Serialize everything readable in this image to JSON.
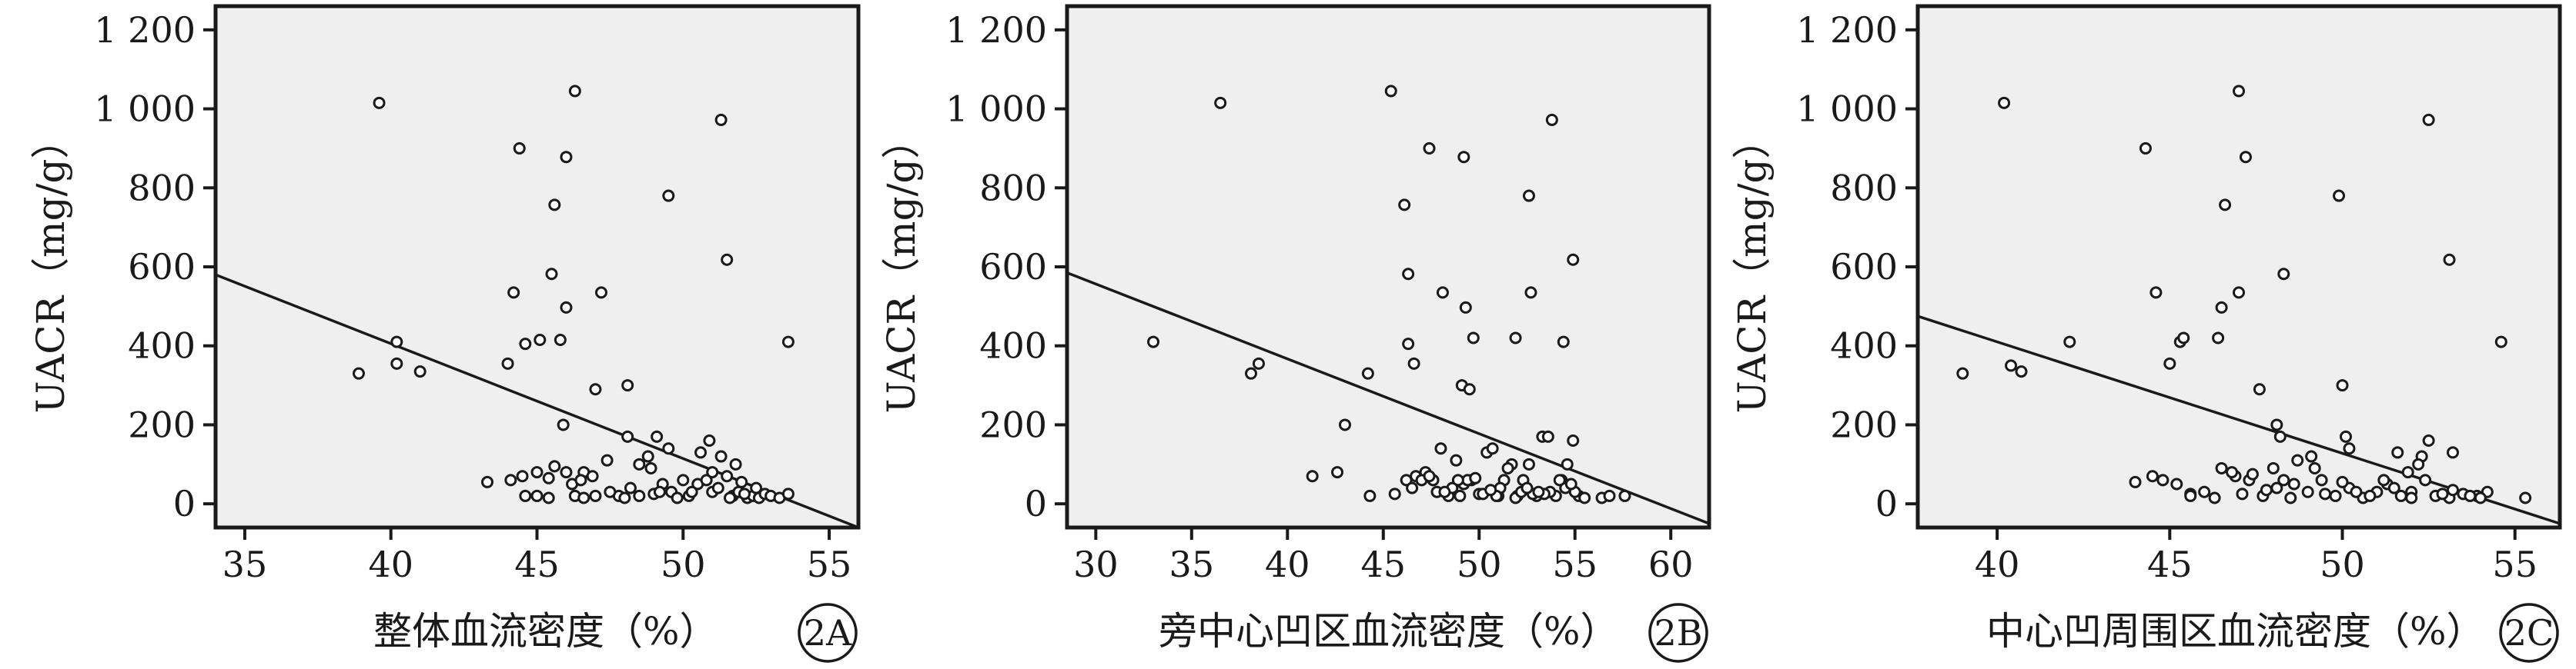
{
  "chart_data": [
    {
      "type": "scatter",
      "panel_label": "2A",
      "xlabel": "整体血流密度（%）",
      "ylabel": "UACR（mg/g）",
      "xlim": [
        34,
        56
      ],
      "ylim": [
        -60,
        1260
      ],
      "x_ticks": [
        35,
        40,
        45,
        50,
        55
      ],
      "y_ticks": [
        0,
        200,
        400,
        600,
        800,
        1000,
        1200
      ],
      "y_tick_labels": [
        "0",
        "200",
        "400",
        "600",
        "800",
        "1 000",
        "1 200"
      ],
      "fit_line": {
        "x": [
          34,
          56
        ],
        "y": [
          580,
          -60
        ]
      },
      "points": [
        [
          39.6,
          1015
        ],
        [
          46.3,
          1045
        ],
        [
          51.3,
          972
        ],
        [
          44.4,
          900
        ],
        [
          46.0,
          878
        ],
        [
          49.5,
          780
        ],
        [
          45.6,
          757
        ],
        [
          51.5,
          618
        ],
        [
          45.5,
          582
        ],
        [
          44.2,
          535
        ],
        [
          47.2,
          535
        ],
        [
          46.0,
          497
        ],
        [
          38.9,
          330
        ],
        [
          40.2,
          410
        ],
        [
          40.2,
          355
        ],
        [
          41.0,
          335
        ],
        [
          44.0,
          355
        ],
        [
          44.6,
          405
        ],
        [
          45.1,
          415
        ],
        [
          45.8,
          415
        ],
        [
          47.0,
          290
        ],
        [
          48.1,
          300
        ],
        [
          53.6,
          410
        ],
        [
          45.9,
          200
        ],
        [
          48.1,
          170
        ],
        [
          48.8,
          120
        ],
        [
          49.1,
          170
        ],
        [
          49.5,
          140
        ],
        [
          50.6,
          130
        ],
        [
          50.9,
          160
        ],
        [
          51.3,
          120
        ],
        [
          51.8,
          100
        ],
        [
          47.4,
          110
        ],
        [
          46.6,
          80
        ],
        [
          43.3,
          55
        ],
        [
          44.1,
          60
        ],
        [
          44.5,
          70
        ],
        [
          45.0,
          80
        ],
        [
          45.4,
          65
        ],
        [
          45.6,
          95
        ],
        [
          46.0,
          80
        ],
        [
          46.2,
          50
        ],
        [
          46.5,
          60
        ],
        [
          46.9,
          70
        ],
        [
          47.8,
          20
        ],
        [
          48.2,
          40
        ],
        [
          48.5,
          100
        ],
        [
          48.9,
          90
        ],
        [
          49.3,
          50
        ],
        [
          49.6,
          30
        ],
        [
          50.0,
          60
        ],
        [
          50.2,
          20
        ],
        [
          50.5,
          50
        ],
        [
          50.8,
          60
        ],
        [
          51.0,
          30
        ],
        [
          51.2,
          40
        ],
        [
          51.5,
          70
        ],
        [
          51.7,
          20
        ],
        [
          51.9,
          30
        ],
        [
          52.0,
          55
        ],
        [
          52.2,
          15
        ],
        [
          52.4,
          20
        ],
        [
          52.6,
          15
        ],
        [
          52.8,
          25
        ],
        [
          53.0,
          20
        ],
        [
          53.3,
          15
        ],
        [
          53.6,
          25
        ],
        [
          44.6,
          20
        ],
        [
          45.0,
          20
        ],
        [
          45.4,
          15
        ],
        [
          46.3,
          20
        ],
        [
          46.6,
          15
        ],
        [
          47.0,
          20
        ],
        [
          47.5,
          30
        ],
        [
          48.0,
          15
        ],
        [
          48.5,
          20
        ],
        [
          49.0,
          25
        ],
        [
          49.8,
          15
        ],
        [
          50.3,
          30
        ],
        [
          51.6,
          15
        ],
        [
          52.1,
          25
        ],
        [
          52.5,
          40
        ],
        [
          49.2,
          30
        ],
        [
          51.0,
          80
        ]
      ]
    },
    {
      "type": "scatter",
      "panel_label": "2B",
      "xlabel": "旁中心凹区血流密度（%）",
      "ylabel": "UACR（mg/g）",
      "xlim": [
        28.5,
        62
      ],
      "ylim": [
        -60,
        1260
      ],
      "x_ticks": [
        30,
        35,
        40,
        45,
        50,
        55,
        60
      ],
      "y_ticks": [
        0,
        200,
        400,
        600,
        800,
        1000,
        1200
      ],
      "y_tick_labels": [
        "0",
        "200",
        "400",
        "600",
        "800",
        "1 000",
        "1 200"
      ],
      "fit_line": {
        "x": [
          28.5,
          62
        ],
        "y": [
          585,
          -50
        ]
      },
      "points": [
        [
          36.5,
          1015
        ],
        [
          45.4,
          1045
        ],
        [
          53.8,
          972
        ],
        [
          47.4,
          900
        ],
        [
          49.2,
          878
        ],
        [
          52.6,
          780
        ],
        [
          46.1,
          757
        ],
        [
          54.9,
          618
        ],
        [
          46.3,
          582
        ],
        [
          48.1,
          535
        ],
        [
          52.7,
          535
        ],
        [
          49.3,
          497
        ],
        [
          33.0,
          410
        ],
        [
          38.1,
          330
        ],
        [
          38.5,
          355
        ],
        [
          44.2,
          330
        ],
        [
          46.3,
          405
        ],
        [
          46.6,
          355
        ],
        [
          49.7,
          420
        ],
        [
          51.9,
          420
        ],
        [
          49.1,
          300
        ],
        [
          49.5,
          290
        ],
        [
          54.4,
          410
        ],
        [
          43.0,
          200
        ],
        [
          41.3,
          70
        ],
        [
          42.6,
          80
        ],
        [
          44.3,
          20
        ],
        [
          45.6,
          25
        ],
        [
          46.2,
          60
        ],
        [
          46.7,
          70
        ],
        [
          47.2,
          80
        ],
        [
          47.6,
          60
        ],
        [
          48.0,
          140
        ],
        [
          48.4,
          20
        ],
        [
          48.8,
          110
        ],
        [
          49.2,
          50
        ],
        [
          49.6,
          60
        ],
        [
          50.0,
          25
        ],
        [
          50.4,
          130
        ],
        [
          50.7,
          140
        ],
        [
          51.0,
          20
        ],
        [
          51.3,
          60
        ],
        [
          51.7,
          100
        ],
        [
          52.0,
          20
        ],
        [
          52.3,
          60
        ],
        [
          52.6,
          100
        ],
        [
          53.0,
          20
        ],
        [
          53.3,
          170
        ],
        [
          53.6,
          170
        ],
        [
          54.0,
          20
        ],
        [
          54.3,
          60
        ],
        [
          54.6,
          100
        ],
        [
          54.9,
          160
        ],
        [
          55.2,
          20
        ],
        [
          55.5,
          15
        ],
        [
          56.4,
          15
        ],
        [
          56.8,
          20
        ],
        [
          57.6,
          20
        ],
        [
          46.5,
          40
        ],
        [
          47.0,
          60
        ],
        [
          47.8,
          30
        ],
        [
          48.6,
          40
        ],
        [
          49.4,
          60
        ],
        [
          50.2,
          25
        ],
        [
          51.1,
          40
        ],
        [
          51.9,
          15
        ],
        [
          52.8,
          25
        ],
        [
          53.7,
          30
        ],
        [
          54.5,
          40
        ],
        [
          55.0,
          30
        ],
        [
          49.8,
          65
        ],
        [
          50.9,
          20
        ],
        [
          52.2,
          30
        ],
        [
          53.4,
          25
        ],
        [
          54.2,
          60
        ],
        [
          47.4,
          70
        ],
        [
          48.2,
          30
        ],
        [
          49.0,
          20
        ],
        [
          51.5,
          90
        ],
        [
          52.5,
          40
        ],
        [
          53.1,
          30
        ],
        [
          54.8,
          50
        ],
        [
          48.9,
          60
        ],
        [
          50.6,
          35
        ]
      ]
    },
    {
      "type": "scatter",
      "panel_label": "2C",
      "xlabel": "中心凹周围区血流密度（%）",
      "ylabel": "UACR（mg/g）",
      "xlim": [
        37.7,
        56.3
      ],
      "ylim": [
        -60,
        1260
      ],
      "x_ticks": [
        40,
        45,
        50,
        55
      ],
      "y_ticks": [
        0,
        200,
        400,
        600,
        800,
        1000,
        1200
      ],
      "y_tick_labels": [
        "0",
        "200",
        "400",
        "600",
        "800",
        "1 000",
        "1 200"
      ],
      "fit_line": {
        "x": [
          37.7,
          56.3
        ],
        "y": [
          475,
          -50
        ]
      },
      "points": [
        [
          40.2,
          1015
        ],
        [
          47.0,
          1045
        ],
        [
          52.5,
          972
        ],
        [
          44.3,
          900
        ],
        [
          47.2,
          878
        ],
        [
          49.9,
          780
        ],
        [
          46.6,
          757
        ],
        [
          53.1,
          618
        ],
        [
          48.3,
          582
        ],
        [
          44.6,
          535
        ],
        [
          47.0,
          535
        ],
        [
          46.5,
          497
        ],
        [
          39.0,
          330
        ],
        [
          40.4,
          350
        ],
        [
          40.7,
          335
        ],
        [
          42.1,
          410
        ],
        [
          45.0,
          355
        ],
        [
          45.3,
          410
        ],
        [
          45.4,
          420
        ],
        [
          46.4,
          420
        ],
        [
          47.6,
          290
        ],
        [
          50.0,
          300
        ],
        [
          54.6,
          410
        ],
        [
          48.1,
          200
        ],
        [
          48.2,
          170
        ],
        [
          50.1,
          170
        ],
        [
          50.2,
          140
        ],
        [
          51.6,
          130
        ],
        [
          52.3,
          120
        ],
        [
          52.5,
          160
        ],
        [
          53.2,
          130
        ],
        [
          49.1,
          120
        ],
        [
          48.7,
          110
        ],
        [
          48.0,
          90
        ],
        [
          44.0,
          55
        ],
        [
          44.5,
          70
        ],
        [
          44.8,
          60
        ],
        [
          45.2,
          50
        ],
        [
          45.6,
          25
        ],
        [
          46.0,
          30
        ],
        [
          46.5,
          90
        ],
        [
          46.9,
          70
        ],
        [
          47.3,
          60
        ],
        [
          47.7,
          20
        ],
        [
          48.1,
          40
        ],
        [
          48.5,
          15
        ],
        [
          49.0,
          30
        ],
        [
          49.4,
          60
        ],
        [
          49.8,
          20
        ],
        [
          50.2,
          40
        ],
        [
          50.6,
          15
        ],
        [
          51.0,
          30
        ],
        [
          51.3,
          50
        ],
        [
          51.7,
          20
        ],
        [
          52.0,
          30
        ],
        [
          52.4,
          60
        ],
        [
          52.7,
          20
        ],
        [
          53.1,
          15
        ],
        [
          53.5,
          25
        ],
        [
          53.9,
          20
        ],
        [
          54.2,
          30
        ],
        [
          55.3,
          15
        ],
        [
          45.6,
          20
        ],
        [
          46.3,
          15
        ],
        [
          47.1,
          25
        ],
        [
          47.8,
          35
        ],
        [
          48.6,
          50
        ],
        [
          49.5,
          25
        ],
        [
          50.4,
          30
        ],
        [
          51.2,
          60
        ],
        [
          52.0,
          15
        ],
        [
          52.9,
          25
        ],
        [
          53.7,
          20
        ],
        [
          54.0,
          15
        ],
        [
          46.8,
          80
        ],
        [
          47.4,
          75
        ],
        [
          49.2,
          90
        ],
        [
          50.8,
          20
        ],
        [
          51.5,
          40
        ],
        [
          52.2,
          100
        ],
        [
          48.3,
          60
        ],
        [
          50.0,
          55
        ],
        [
          51.9,
          80
        ],
        [
          53.2,
          35
        ]
      ]
    }
  ]
}
